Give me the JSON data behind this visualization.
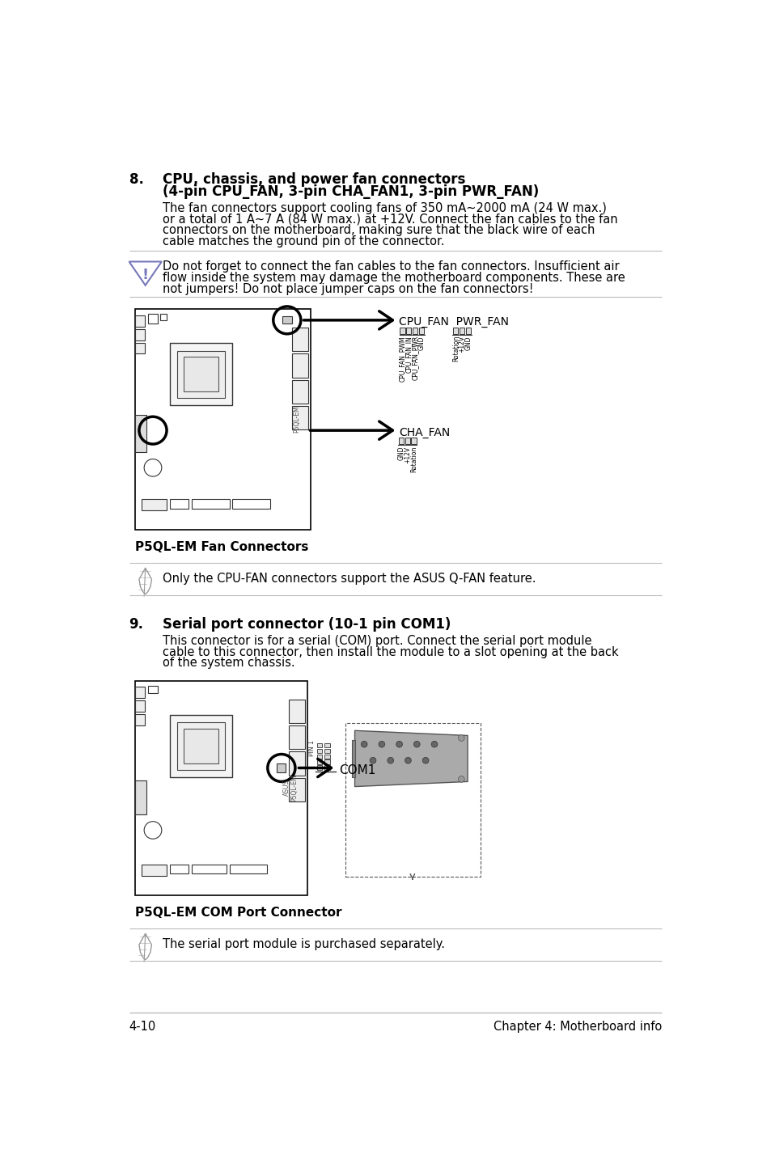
{
  "bg_color": "#ffffff",
  "section8_num": "8.",
  "section8_title1": "CPU, chassis, and power fan connectors",
  "section8_title2": "(4-pin CPU_FAN, 3-pin CHA_FAN1, 3-pin PWR_FAN)",
  "section8_body": "The fan connectors support cooling fans of 350 mA~2000 mA (24 W max.)\nor a total of 1 A~7 A (84 W max.) at +12V. Connect the fan cables to the fan\nconnectors on the motherboard, making sure that the black wire of each\ncable matches the ground pin of the connector.",
  "warn1": "Do not forget to connect the fan cables to the fan connectors. Insufficient air",
  "warn2": "flow inside the system may damage the motherboard components. These are",
  "warn3": "not jumpers! Do not place jumper caps on the fan connectors!",
  "cap1": "P5QL-EM Fan Connectors",
  "note1": "Only the CPU-FAN connectors support the ASUS Q-FAN feature.",
  "section9_num": "9.",
  "section9_title": "Serial port connector (10-1 pin COM1)",
  "section9_body": "This connector is for a serial (COM) port. Connect the serial port module\ncable to this connector, then install the module to a slot opening at the back\nof the system chassis.",
  "cap2": "P5QL-EM COM Port Connector",
  "note2": "The serial port module is purchased separately.",
  "footer_left": "4-10",
  "footer_right": "Chapter 4: Motherboard info",
  "line_color": "#bbbbbb",
  "warn_tri_color": "#7777bb",
  "icon_color": "#999999",
  "text_color": "#000000",
  "bold_color": "#000000"
}
